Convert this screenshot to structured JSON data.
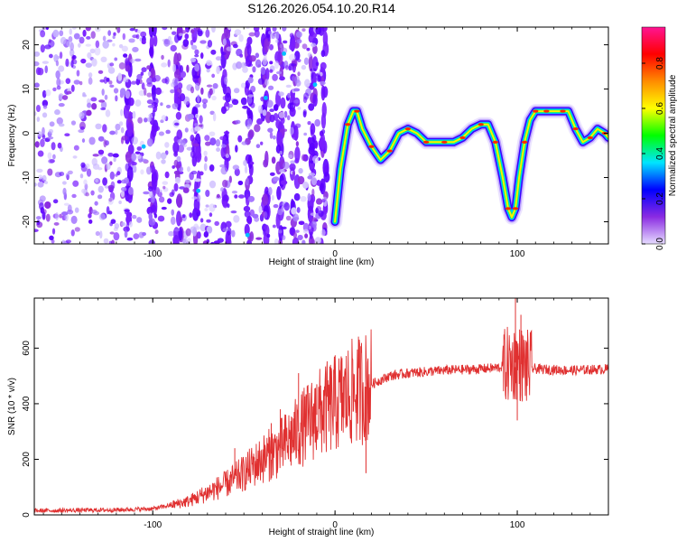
{
  "title": "S126.2026.054.10.20.R14",
  "chart_data": [
    {
      "type": "heatmap",
      "name": "spectrogram",
      "xlabel": "Height of straight line (km)",
      "ylabel": "Frequency (Hz)",
      "xlim": [
        -165,
        150
      ],
      "ylim": [
        -25,
        24
      ],
      "xticks": [
        -100,
        0,
        100
      ],
      "yticks": [
        -20,
        -10,
        0,
        10,
        20
      ],
      "grid": false,
      "colorbar": {
        "label": "Normalized spectral amplitude",
        "range": [
          0,
          0.96
        ],
        "ticks": [
          0.0,
          0.2,
          0.4,
          0.6,
          0.8
        ],
        "tick_labels": [
          "0.0",
          "0.2",
          "0.4",
          "0.6",
          "0.8"
        ],
        "colors": [
          "#e6dcff",
          "#8a2be2",
          "#0000ff",
          "#00e5ff",
          "#00ff00",
          "#ffff00",
          "#ff8c00",
          "#ff0000",
          "#ff1493"
        ]
      },
      "noise_region_km": [
        -165,
        -5
      ],
      "ridge_line": {
        "x": [
          0,
          3,
          7,
          10,
          12,
          15,
          20,
          25,
          30,
          35,
          40,
          45,
          50,
          55,
          60,
          65,
          70,
          75,
          80,
          84,
          88,
          92,
          95,
          97,
          99,
          101,
          104,
          107,
          110,
          112,
          116,
          120,
          125,
          128,
          132,
          136,
          140,
          144,
          148,
          150
        ],
        "y": [
          -20,
          -8,
          2,
          5,
          5,
          1,
          -3,
          -6,
          -4,
          0,
          1,
          0,
          -2,
          -2,
          -2,
          -2,
          -1,
          1,
          2,
          2,
          -2,
          -10,
          -17,
          -19,
          -17,
          -10,
          -2,
          3,
          5,
          5,
          5,
          5,
          5,
          5,
          1,
          -2,
          -1,
          1,
          0,
          -1
        ]
      }
    },
    {
      "type": "line",
      "name": "snr",
      "xlabel": "Height of straight line (km)",
      "ylabel": "SNR (10 * v/v)",
      "xlim": [
        -165,
        150
      ],
      "ylim": [
        0,
        780
      ],
      "xticks": [
        -100,
        0,
        100
      ],
      "yticks": [
        0,
        200,
        400,
        600
      ],
      "grid": false,
      "color": "#e03030",
      "trend": {
        "x": [
          -165,
          -120,
          -100,
          -90,
          -80,
          -70,
          -60,
          -50,
          -40,
          -30,
          -20,
          -10,
          0,
          10,
          20,
          30,
          40,
          60,
          80,
          90,
          95,
          100,
          105,
          110,
          130,
          150
        ],
        "y": [
          15,
          18,
          22,
          35,
          50,
          80,
          110,
          150,
          200,
          240,
          300,
          360,
          400,
          440,
          470,
          500,
          510,
          520,
          525,
          530,
          540,
          550,
          530,
          525,
          520,
          525
        ]
      },
      "spikes": [
        {
          "x": -55,
          "y": 240
        },
        {
          "x": -45,
          "y": 210
        },
        {
          "x": -35,
          "y": 330
        },
        {
          "x": -30,
          "y": 380
        },
        {
          "x": -20,
          "y": 510
        },
        {
          "x": -10,
          "y": 470
        },
        {
          "x": -5,
          "y": 440
        },
        {
          "x": 10,
          "y": 420
        },
        {
          "x": 17,
          "y": 150
        },
        {
          "x": 99,
          "y": 780
        },
        {
          "x": 100,
          "y": 340
        },
        {
          "x": 102,
          "y": 720
        }
      ]
    }
  ]
}
